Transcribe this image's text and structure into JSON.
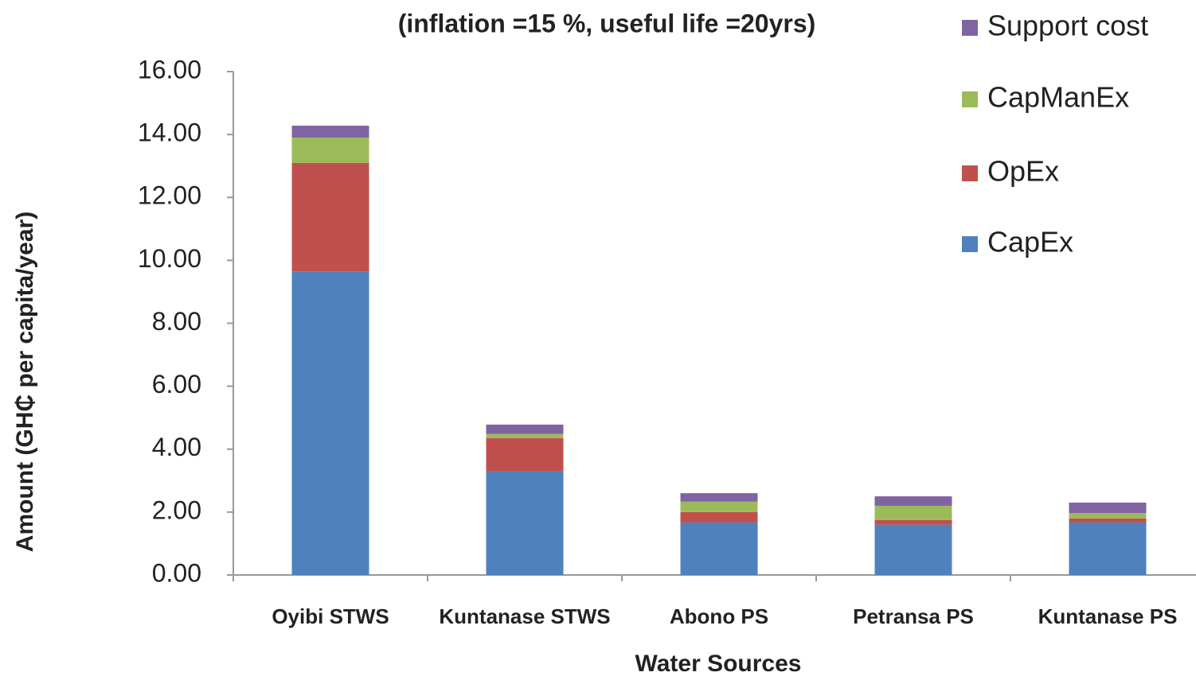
{
  "chart_data": {
    "type": "stacked_bar",
    "title": "(inflation =15 %, useful life =20yrs)",
    "x_label": "Water Sources",
    "y_label": "Amount (GH₵ per capita/year)",
    "categories": [
      "Oyibi STWS",
      "Kuntanase STWS",
      "Abono PS",
      "Petransa PS",
      "Kuntanase PS"
    ],
    "series": [
      {
        "name": "CapEx",
        "color": "#4f81bd",
        "values": [
          9.65,
          3.3,
          1.67,
          1.6,
          1.67
        ]
      },
      {
        "name": "OpEx",
        "color": "#c0504d",
        "values": [
          3.45,
          1.05,
          0.33,
          0.15,
          0.13
        ]
      },
      {
        "name": "CapManEx",
        "color": "#9bbb59",
        "values": [
          0.8,
          0.13,
          0.33,
          0.45,
          0.17
        ]
      },
      {
        "name": "Support cost",
        "color": "#8064a2",
        "values": [
          0.38,
          0.3,
          0.27,
          0.3,
          0.33
        ]
      }
    ],
    "ylim": [
      0,
      16
    ],
    "yticks": [
      {
        "value": 0,
        "label": "0.00"
      },
      {
        "value": 2,
        "label": "2.00"
      },
      {
        "value": 4,
        "label": "4.00"
      },
      {
        "value": 6,
        "label": "6.00"
      },
      {
        "value": 8,
        "label": "8.00"
      },
      {
        "value": 10,
        "label": "10.00"
      },
      {
        "value": 12,
        "label": "12.00"
      },
      {
        "value": 14,
        "label": "14.00"
      },
      {
        "value": 16,
        "label": "16.00"
      }
    ],
    "legend": "top-right"
  }
}
